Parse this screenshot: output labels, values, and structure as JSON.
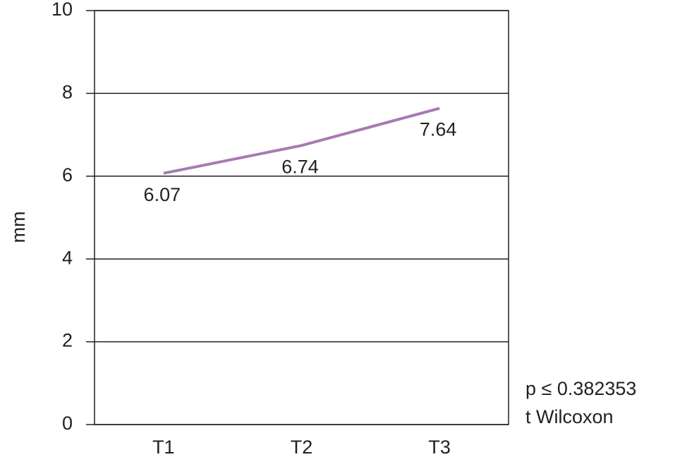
{
  "chart_data": {
    "type": "line",
    "y_label": "mm",
    "categories": [
      "T1",
      "T2",
      "T3"
    ],
    "series": [
      {
        "name": "mm",
        "color": "#a87bb0",
        "values": [
          6.07,
          6.74,
          7.64
        ]
      }
    ],
    "ylim": [
      0,
      10
    ],
    "yticks": [
      0,
      2,
      4,
      6,
      8,
      10
    ],
    "grid": true,
    "annotations": [
      "p ≤ 0.382353",
      "t Wilcoxon"
    ]
  }
}
